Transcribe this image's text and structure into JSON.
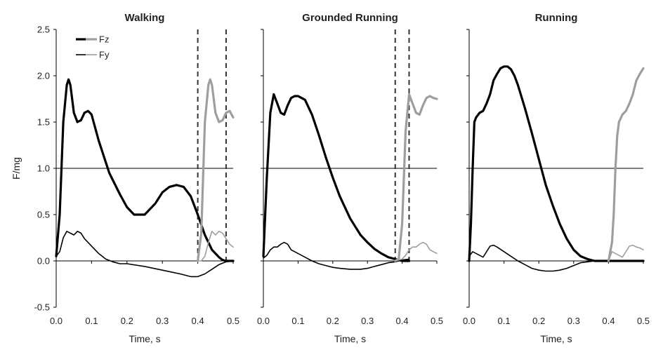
{
  "chart_data": {
    "type": "line",
    "ylabel": "F/mg",
    "xlabel": "Time, s",
    "xlim": [
      0.0,
      0.5
    ],
    "ylim": [
      -0.5,
      2.5
    ],
    "xticks": [
      "0.0",
      "0.1",
      "0.2",
      "0.3",
      "0.4",
      "0.5"
    ],
    "yticks": [
      "-0.5",
      "0.0",
      "0.5",
      "1.0",
      "1.5",
      "2.0",
      "2.5"
    ],
    "reference_line": 1.0,
    "legend": [
      {
        "name": "Fz",
        "style": "thick",
        "color": "#000000"
      },
      {
        "name": "Fy",
        "style": "thin",
        "color": "#000000"
      }
    ],
    "colors": {
      "primary": "#000000",
      "next_step": "#a09d9d",
      "dashed": "#333333"
    },
    "panels": [
      {
        "title": "Walking",
        "dashed_x": [
          0.4,
          0.48
        ],
        "series": [
          {
            "name": "Fz",
            "x": [
              0.0,
              0.01,
              0.02,
              0.03,
              0.035,
              0.04,
              0.05,
              0.06,
              0.07,
              0.08,
              0.09,
              0.1,
              0.12,
              0.15,
              0.18,
              0.2,
              0.22,
              0.25,
              0.28,
              0.3,
              0.32,
              0.34,
              0.36,
              0.38,
              0.4,
              0.42,
              0.44,
              0.46,
              0.47,
              0.48,
              0.5
            ],
            "y": [
              0.05,
              0.5,
              1.5,
              1.9,
              1.96,
              1.9,
              1.6,
              1.5,
              1.52,
              1.6,
              1.62,
              1.58,
              1.3,
              0.95,
              0.72,
              0.58,
              0.5,
              0.5,
              0.62,
              0.74,
              0.8,
              0.82,
              0.8,
              0.7,
              0.5,
              0.28,
              0.12,
              0.04,
              0.01,
              0.0,
              0.0
            ]
          },
          {
            "name": "Fy",
            "x": [
              0.0,
              0.01,
              0.02,
              0.03,
              0.05,
              0.06,
              0.07,
              0.08,
              0.1,
              0.12,
              0.14,
              0.16,
              0.18,
              0.2,
              0.25,
              0.3,
              0.35,
              0.38,
              0.4,
              0.42,
              0.44,
              0.46,
              0.48,
              0.5
            ],
            "y": [
              0.05,
              0.1,
              0.25,
              0.32,
              0.28,
              0.32,
              0.3,
              0.24,
              0.16,
              0.08,
              0.02,
              -0.01,
              -0.03,
              -0.03,
              -0.06,
              -0.1,
              -0.14,
              -0.17,
              -0.17,
              -0.14,
              -0.09,
              -0.04,
              -0.01,
              0.0
            ]
          },
          {
            "name": "Fz (next step)",
            "x": [
              0.4,
              0.41,
              0.42,
              0.43,
              0.435,
              0.44,
              0.45,
              0.46,
              0.47,
              0.48,
              0.49,
              0.5
            ],
            "y": [
              0.0,
              0.3,
              1.5,
              1.9,
              1.96,
              1.9,
              1.6,
              1.5,
              1.52,
              1.6,
              1.62,
              1.55
            ]
          },
          {
            "name": "Fy (next step)",
            "x": [
              0.4,
              0.41,
              0.42,
              0.43,
              0.44,
              0.45,
              0.46,
              0.47,
              0.48,
              0.49,
              0.5
            ],
            "y": [
              0.0,
              0.0,
              0.05,
              0.2,
              0.32,
              0.28,
              0.32,
              0.3,
              0.24,
              0.18,
              0.15
            ]
          }
        ]
      },
      {
        "title": "Grounded Running",
        "dashed_x": [
          0.38,
          0.42
        ],
        "series": [
          {
            "name": "Fz",
            "x": [
              0.0,
              0.01,
              0.02,
              0.03,
              0.04,
              0.05,
              0.06,
              0.07,
              0.08,
              0.09,
              0.1,
              0.12,
              0.14,
              0.16,
              0.18,
              0.2,
              0.22,
              0.25,
              0.28,
              0.3,
              0.32,
              0.34,
              0.36,
              0.38,
              0.4,
              0.42
            ],
            "y": [
              0.05,
              0.9,
              1.6,
              1.8,
              1.7,
              1.6,
              1.58,
              1.68,
              1.76,
              1.78,
              1.78,
              1.74,
              1.58,
              1.36,
              1.12,
              0.9,
              0.7,
              0.46,
              0.28,
              0.2,
              0.13,
              0.08,
              0.04,
              0.02,
              0.0,
              0.0
            ]
          },
          {
            "name": "Fy",
            "x": [
              0.0,
              0.01,
              0.02,
              0.03,
              0.04,
              0.05,
              0.06,
              0.07,
              0.08,
              0.1,
              0.12,
              0.14,
              0.16,
              0.18,
              0.2,
              0.22,
              0.25,
              0.28,
              0.3,
              0.32,
              0.34,
              0.36,
              0.38,
              0.4,
              0.42
            ],
            "y": [
              0.03,
              0.06,
              0.12,
              0.15,
              0.15,
              0.18,
              0.2,
              0.18,
              0.12,
              0.08,
              0.04,
              0.0,
              -0.03,
              -0.05,
              -0.07,
              -0.08,
              -0.09,
              -0.09,
              -0.08,
              -0.06,
              -0.04,
              -0.02,
              -0.01,
              0.01,
              0.02
            ]
          },
          {
            "name": "Fz (next step)",
            "x": [
              0.38,
              0.39,
              0.4,
              0.41,
              0.42,
              0.43,
              0.44,
              0.45,
              0.46,
              0.47,
              0.48,
              0.49,
              0.5
            ],
            "y": [
              0.0,
              0.02,
              0.4,
              1.4,
              1.8,
              1.7,
              1.6,
              1.58,
              1.68,
              1.76,
              1.78,
              1.76,
              1.75
            ]
          },
          {
            "name": "Fy (next step)",
            "x": [
              0.38,
              0.4,
              0.41,
              0.42,
              0.43,
              0.44,
              0.45,
              0.46,
              0.47,
              0.48,
              0.5
            ],
            "y": [
              0.0,
              0.02,
              0.06,
              0.12,
              0.15,
              0.15,
              0.18,
              0.2,
              0.18,
              0.12,
              0.08
            ]
          }
        ]
      },
      {
        "title": "Running",
        "dashed_x": [],
        "series": [
          {
            "name": "Fz",
            "x": [
              0.0,
              0.005,
              0.01,
              0.015,
              0.02,
              0.03,
              0.04,
              0.05,
              0.06,
              0.07,
              0.08,
              0.09,
              0.1,
              0.11,
              0.12,
              0.13,
              0.14,
              0.16,
              0.18,
              0.2,
              0.22,
              0.24,
              0.26,
              0.28,
              0.3,
              0.32,
              0.34,
              0.36,
              0.38,
              0.4,
              0.45,
              0.5
            ],
            "y": [
              0.0,
              0.4,
              1.0,
              1.5,
              1.55,
              1.6,
              1.62,
              1.7,
              1.8,
              1.95,
              2.02,
              2.08,
              2.1,
              2.1,
              2.07,
              2.0,
              1.9,
              1.65,
              1.38,
              1.1,
              0.82,
              0.6,
              0.4,
              0.24,
              0.12,
              0.05,
              0.02,
              0.0,
              0.0,
              0.0,
              0.0,
              0.0
            ]
          },
          {
            "name": "Fy",
            "x": [
              0.0,
              0.01,
              0.02,
              0.03,
              0.04,
              0.05,
              0.06,
              0.07,
              0.08,
              0.1,
              0.12,
              0.14,
              0.16,
              0.18,
              0.2,
              0.22,
              0.24,
              0.26,
              0.28,
              0.3,
              0.32,
              0.34,
              0.36
            ],
            "y": [
              0.05,
              0.1,
              0.08,
              0.06,
              0.04,
              0.1,
              0.16,
              0.17,
              0.15,
              0.1,
              0.05,
              0.0,
              -0.04,
              -0.08,
              -0.1,
              -0.11,
              -0.11,
              -0.1,
              -0.08,
              -0.05,
              -0.02,
              -0.01,
              0.0
            ]
          },
          {
            "name": "Fz (next step)",
            "x": [
              0.4,
              0.41,
              0.415,
              0.42,
              0.425,
              0.43,
              0.44,
              0.45,
              0.46,
              0.47,
              0.48,
              0.49,
              0.5
            ],
            "y": [
              0.0,
              0.2,
              0.5,
              1.0,
              1.35,
              1.5,
              1.58,
              1.62,
              1.7,
              1.8,
              1.95,
              2.02,
              2.08
            ]
          },
          {
            "name": "Fy (next step)",
            "x": [
              0.4,
              0.41,
              0.42,
              0.43,
              0.44,
              0.45,
              0.46,
              0.47,
              0.48,
              0.49,
              0.5
            ],
            "y": [
              0.0,
              0.1,
              0.08,
              0.06,
              0.04,
              0.1,
              0.16,
              0.17,
              0.15,
              0.14,
              0.12
            ]
          }
        ]
      }
    ]
  }
}
